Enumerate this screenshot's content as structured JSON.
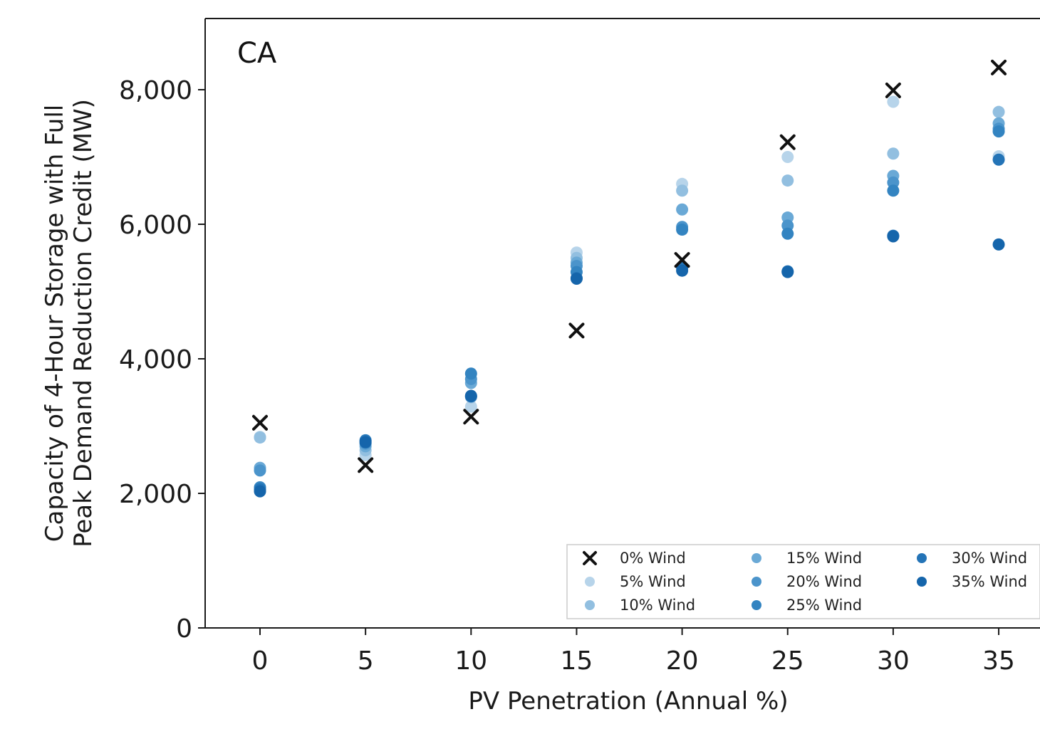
{
  "chart_data": {
    "type": "scatter",
    "panel_label": "CA",
    "xlabel": "PV Penetration (Annual %)",
    "ylabel_line1": "Capacity of 4-Hour Storage with Full",
    "ylabel_line2": "Peak Demand Reduction Credit (MW)",
    "xlim": [
      -5,
      37
    ],
    "ylim": [
      0,
      9000
    ],
    "xticks": [
      0,
      5,
      10,
      15,
      20,
      25,
      30,
      35
    ],
    "xtick_labels": [
      "0",
      "5",
      "10",
      "15",
      "20",
      "25",
      "30",
      "35"
    ],
    "yticks": [
      0,
      2000,
      4000,
      6000,
      8000
    ],
    "ytick_labels": [
      "0",
      "2,000",
      "4,000",
      "6,000",
      "8,000"
    ],
    "grid": false,
    "legend_position": "lower-right",
    "x": [
      0,
      5,
      10,
      15,
      20,
      25,
      30,
      35
    ],
    "series": [
      {
        "name": "0% Wind",
        "marker": "x",
        "color": "#111111",
        "values": [
          3050,
          2420,
          3140,
          4420,
          5470,
          7220,
          7990,
          8330
        ]
      },
      {
        "name": "5% Wind",
        "marker": "o",
        "color": "#b7d4ea",
        "values": [
          2840,
          2570,
          3290,
          5580,
          6600,
          7000,
          7820,
          7010
        ]
      },
      {
        "name": "10% Wind",
        "marker": "o",
        "color": "#92bfe0",
        "values": [
          2830,
          2640,
          3430,
          5500,
          6500,
          6650,
          7050,
          7670
        ]
      },
      {
        "name": "15% Wind",
        "marker": "o",
        "color": "#6aa9d6",
        "values": [
          2380,
          2700,
          3640,
          5430,
          6220,
          6100,
          6720,
          7500
        ]
      },
      {
        "name": "20% Wind",
        "marker": "o",
        "color": "#4b94cb",
        "values": [
          2340,
          2740,
          3700,
          5380,
          5960,
          5980,
          6620,
          7420
        ]
      },
      {
        "name": "25% Wind",
        "marker": "o",
        "color": "#3384c1",
        "values": [
          2090,
          2790,
          3780,
          5290,
          5920,
          5860,
          6500,
          7380
        ]
      },
      {
        "name": "30% Wind",
        "marker": "o",
        "color": "#2474b7",
        "values": [
          2060,
          2780,
          3440,
          5200,
          5350,
          5300,
          5830,
          6960
        ]
      },
      {
        "name": "35% Wind",
        "marker": "o",
        "color": "#1565ab",
        "values": [
          2030,
          2760,
          3450,
          5190,
          5310,
          5290,
          5820,
          5700
        ]
      }
    ]
  }
}
